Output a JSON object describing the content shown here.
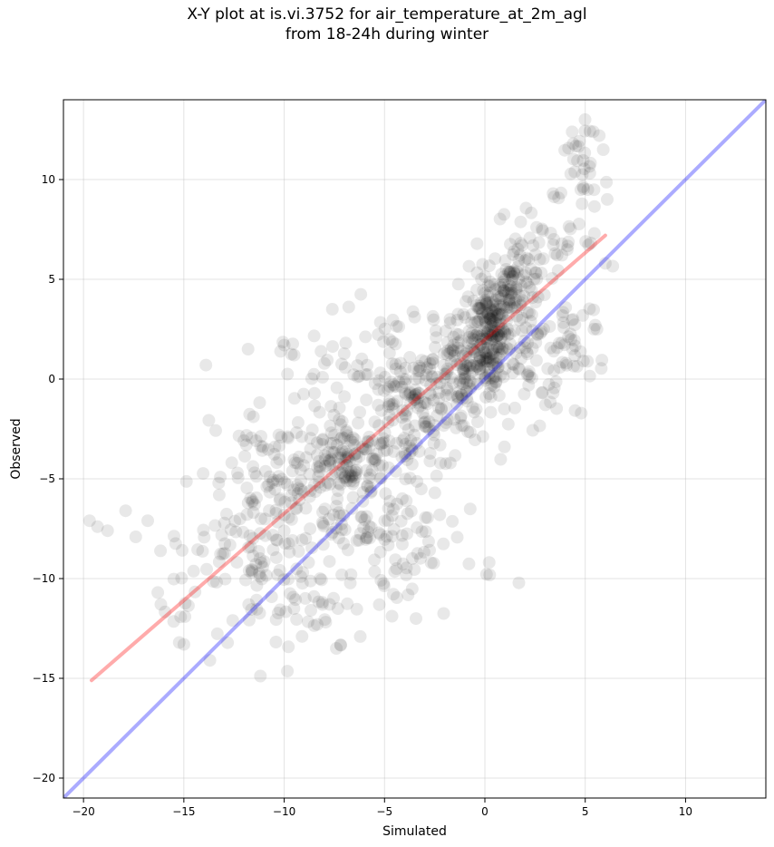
{
  "chart_data": {
    "type": "scatter",
    "title": "X-Y plot at is.vi.3752 for air_temperature_at_2m_agl",
    "subtitle": "from 18-24h during winter",
    "xlabel": "Simulated",
    "ylabel": "Observed",
    "xlim": [
      -21,
      14
    ],
    "ylim": [
      -21,
      14
    ],
    "xticks": [
      -20,
      -15,
      -10,
      -5,
      0,
      5,
      10
    ],
    "yticks": [
      -20,
      -15,
      -10,
      -5,
      0,
      5,
      10
    ],
    "xtick_labels": [
      "−20",
      "−15",
      "−10",
      "−5",
      "0",
      "5",
      "10"
    ],
    "ytick_labels": [
      "−20",
      "−15",
      "−10",
      "−5",
      "0",
      "5",
      "10"
    ],
    "grid": true,
    "point_color": "#000000",
    "point_opacity": 0.09,
    "identity_line": {
      "color": "#0000ff",
      "opacity": 0.33,
      "x": [
        -21,
        14
      ],
      "y": [
        -21,
        14
      ]
    },
    "fit_line": {
      "color": "#ff0000",
      "opacity": 0.33,
      "x": [
        -19.6,
        6.0
      ],
      "y": [
        -15.1,
        7.2
      ]
    },
    "clusters": [
      {
        "x": 0.2,
        "y": 2.5,
        "sx": 0.5,
        "sy": 1.3,
        "n": 160
      },
      {
        "x": 1.3,
        "y": 4.5,
        "sx": 0.6,
        "sy": 1.0,
        "n": 80
      },
      {
        "x": 2.5,
        "y": 6.5,
        "sx": 1.0,
        "sy": 1.2,
        "n": 50
      },
      {
        "x": 4.8,
        "y": 9.5,
        "sx": 0.7,
        "sy": 1.5,
        "n": 40
      },
      {
        "x": -0.8,
        "y": 0.5,
        "sx": 1.2,
        "sy": 1.3,
        "n": 130
      },
      {
        "x": -3.5,
        "y": -1.5,
        "sx": 1.8,
        "sy": 1.5,
        "n": 180
      },
      {
        "x": -7.0,
        "y": -4.0,
        "sx": 1.2,
        "sy": 1.0,
        "n": 120
      },
      {
        "x": -6.5,
        "y": -7.5,
        "sx": 1.8,
        "sy": 1.8,
        "n": 90
      },
      {
        "x": -10.0,
        "y": -5.0,
        "sx": 1.8,
        "sy": 2.0,
        "n": 100
      },
      {
        "x": -12.0,
        "y": -8.5,
        "sx": 1.8,
        "sy": 1.5,
        "n": 70
      },
      {
        "x": -9.0,
        "y": -11.5,
        "sx": 1.6,
        "sy": 1.2,
        "n": 45
      },
      {
        "x": -3.0,
        "y": -8.5,
        "sx": 1.8,
        "sy": 1.6,
        "n": 40
      },
      {
        "x": 2.5,
        "y": 1.0,
        "sx": 1.2,
        "sy": 1.5,
        "n": 70
      },
      {
        "x": -4.0,
        "y": 2.0,
        "sx": 2.0,
        "sy": 1.0,
        "n": 30
      },
      {
        "x": -8.5,
        "y": 0.5,
        "sx": 1.5,
        "sy": 1.2,
        "n": 20
      },
      {
        "x": 4.5,
        "y": 2.0,
        "sx": 0.8,
        "sy": 1.5,
        "n": 25
      },
      {
        "x": -15.0,
        "y": -11.5,
        "sx": 1.0,
        "sy": 1.2,
        "n": 15
      }
    ],
    "extra_points": [
      [
        -19.7,
        -7.1
      ],
      [
        -19.3,
        -7.4
      ],
      [
        -18.8,
        -7.6
      ],
      [
        -17.9,
        -6.6
      ],
      [
        -16.8,
        -7.1
      ],
      [
        -16.3,
        -10.7
      ],
      [
        -13.9,
        0.7
      ],
      [
        -11.8,
        1.5
      ],
      [
        -7.6,
        3.5
      ],
      [
        -9.5,
        1.2
      ],
      [
        5.4,
        12.4
      ],
      [
        5.7,
        12.2
      ],
      [
        5.9,
        11.5
      ],
      [
        4.4,
        11.8
      ],
      [
        -13.7,
        -14.1
      ],
      [
        -7.4,
        -13.5
      ],
      [
        -15.0,
        -13.3
      ],
      [
        3.4,
        -0.7
      ],
      [
        5.5,
        2.7
      ],
      [
        6.0,
        5.8
      ]
    ]
  }
}
